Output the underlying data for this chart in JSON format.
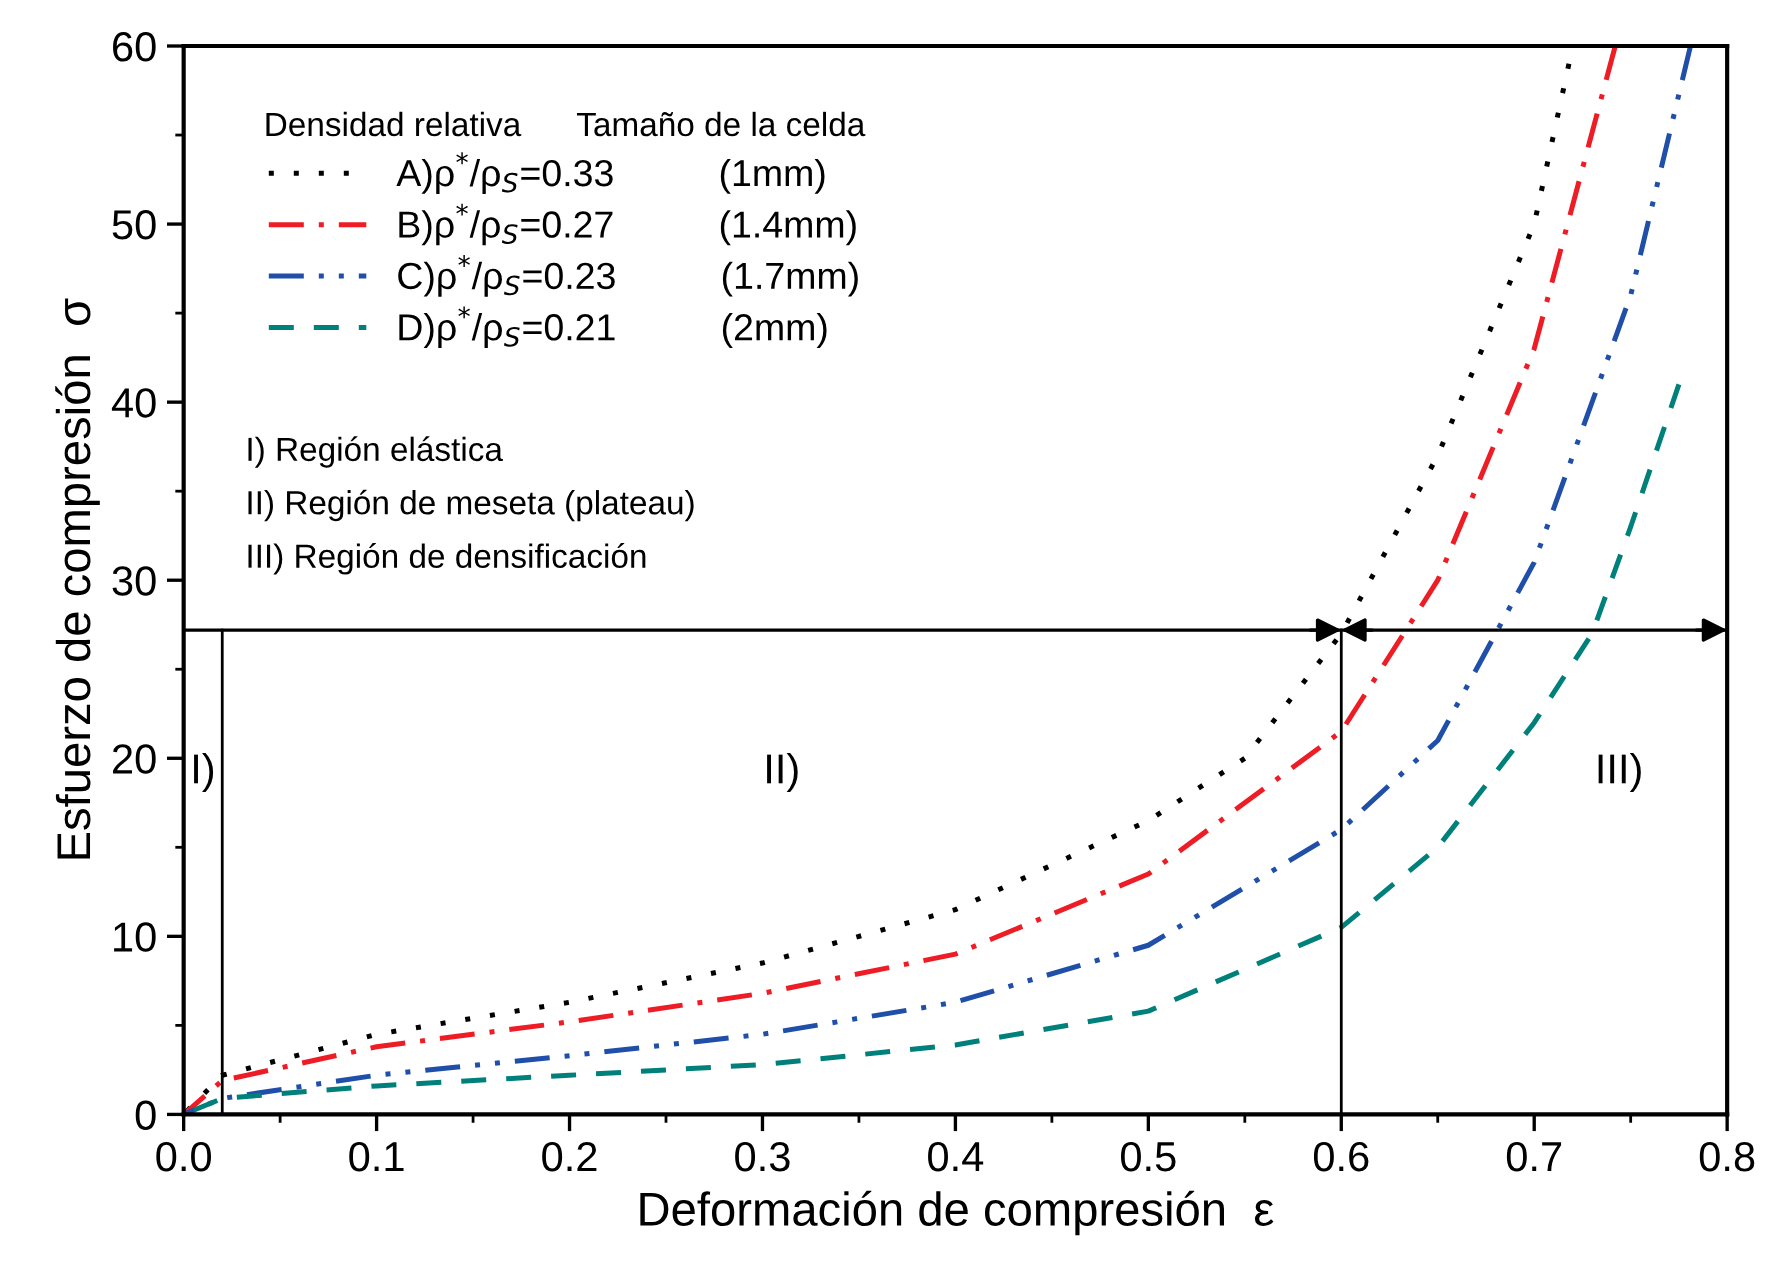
{
  "chart_data": {
    "type": "line",
    "xlabel": "Deformación de compresión  ε",
    "ylabel": "Esfuerzo de compresión  σ",
    "legend_title": "Densidad relativa      Tamaño de la celda",
    "legend": "top left",
    "grid": false,
    "xlim": [
      0.0,
      0.8
    ],
    "xticks": [
      {
        "value": 0.0,
        "label": "0.0"
      },
      0.1,
      0.2,
      0.3,
      0.4,
      0.5,
      0.6,
      0.7,
      0.8
    ],
    "ylim": [
      0,
      60
    ],
    "yticks": [
      0,
      10,
      20,
      30,
      40,
      50,
      60
    ],
    "series": [
      {
        "name": "A)ρ$^{*}$/ρ$_{S}$=0.33          (1mm)",
        "color": "#000000",
        "line_style": "dotted",
        "x": [
          0,
          0.02,
          0.1,
          0.2,
          0.3,
          0.4,
          0.5,
          0.55,
          0.6,
          0.65,
          0.7,
          0.718
        ],
        "values": [
          0,
          2.2,
          4.5,
          6.3,
          8.5,
          11.5,
          16.5,
          20,
          27,
          37,
          50,
          59
        ]
      },
      {
        "name": "B)ρ$^{*}$/ρ$_{S}$=0.27          (1.4mm)",
        "color": "#ee1c25",
        "line_style": "dashdot",
        "x": [
          0,
          0.02,
          0.1,
          0.2,
          0.3,
          0.4,
          0.5,
          0.6,
          0.65,
          0.7,
          0.742
        ],
        "values": [
          0,
          1.9,
          3.8,
          5.2,
          6.8,
          9,
          13.5,
          21.5,
          30,
          43,
          60
        ]
      },
      {
        "name": "C)ρ$^{*}$/ρ$_{S}$=0.23          (1.7mm)",
        "color": "#1f4fa8",
        "line_style": "dashdotdot",
        "x": [
          0,
          0.02,
          0.1,
          0.2,
          0.3,
          0.4,
          0.5,
          0.6,
          0.65,
          0.7,
          0.75,
          0.781
        ],
        "values": [
          0,
          0.9,
          2.2,
          3.3,
          4.5,
          6.3,
          9.5,
          16,
          21,
          31,
          46,
          60
        ]
      },
      {
        "name": "D)ρ$^{*}$/ρ$_{S}$=0.21          (2mm)",
        "color": "#00807a",
        "line_style": "dashed",
        "x": [
          0,
          0.02,
          0.1,
          0.2,
          0.3,
          0.4,
          0.5,
          0.6,
          0.65,
          0.7,
          0.73,
          0.75,
          0.775
        ],
        "values": [
          0,
          0.9,
          1.6,
          2.2,
          2.8,
          3.9,
          5.8,
          10.5,
          15,
          22,
          27,
          33,
          41
        ]
      }
    ],
    "ref_lines": [
      {
        "axis": "x",
        "value": 0.02,
        "color": "#000000"
      },
      {
        "axis": "x",
        "value": 0.6,
        "color": "#000000"
      },
      {
        "axis": "y",
        "value": 27.2,
        "color": "#000000"
      }
    ],
    "annotations": [
      "I)",
      "II)",
      "III)",
      "I) Región elástica",
      "II) Región de meseta (plateau)",
      "III) Región de densificación"
    ]
  }
}
